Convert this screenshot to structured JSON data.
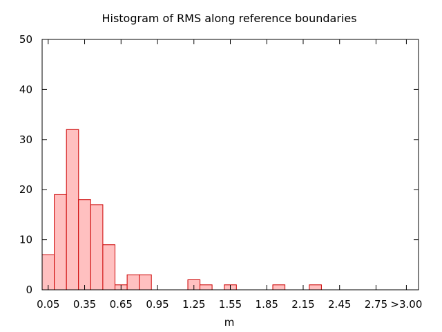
{
  "chart_data": {
    "type": "bar",
    "title": "Histogram of RMS along reference boundaries",
    "xlabel": "m",
    "ylabel": "",
    "ylim": [
      0,
      50
    ],
    "yticks": [
      0,
      10,
      20,
      30,
      40,
      50
    ],
    "xlim": [
      0,
      3.1
    ],
    "xticks": [
      {
        "value": 0.05,
        "label": "0.05"
      },
      {
        "value": 0.35,
        "label": "0.35"
      },
      {
        "value": 0.65,
        "label": "0.65"
      },
      {
        "value": 0.95,
        "label": "0.95"
      },
      {
        "value": 1.25,
        "label": "1.25"
      },
      {
        "value": 1.55,
        "label": "1.55"
      },
      {
        "value": 1.85,
        "label": "1.85"
      },
      {
        "value": 2.15,
        "label": "2.15"
      },
      {
        "value": 2.45,
        "label": "2.45"
      },
      {
        "value": 2.75,
        "label": "2.75"
      },
      {
        "value": 3.0,
        "label": ">3.00"
      }
    ],
    "bin_width": 0.1,
    "bins": [
      {
        "center": 0.05,
        "value": 7
      },
      {
        "center": 0.15,
        "value": 19
      },
      {
        "center": 0.25,
        "value": 32
      },
      {
        "center": 0.35,
        "value": 18
      },
      {
        "center": 0.45,
        "value": 17
      },
      {
        "center": 0.55,
        "value": 9
      },
      {
        "center": 0.65,
        "value": 1
      },
      {
        "center": 0.75,
        "value": 3
      },
      {
        "center": 0.85,
        "value": 3
      },
      {
        "center": 1.25,
        "value": 2
      },
      {
        "center": 1.35,
        "value": 1
      },
      {
        "center": 1.55,
        "value": 1
      },
      {
        "center": 1.95,
        "value": 1
      },
      {
        "center": 2.25,
        "value": 1
      }
    ],
    "colors": {
      "bar_fill": "#ffc0c0",
      "bar_stroke": "#cc0000"
    },
    "grid": false,
    "legend": "none"
  }
}
